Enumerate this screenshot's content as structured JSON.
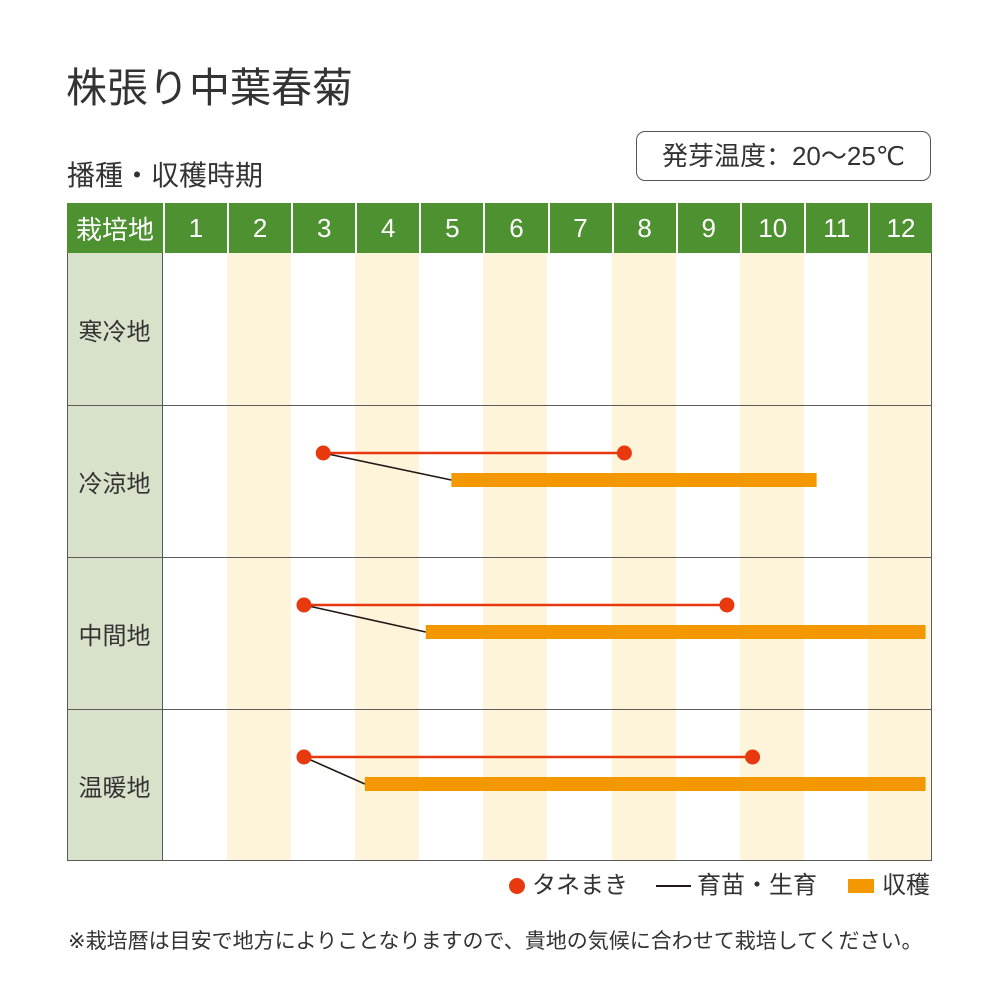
{
  "title": "株張り中葉春菊",
  "germination_temp": "発芽温度：20〜25℃",
  "note": "※栽培暦は目安で地方によりことなりますので、貴地の気候に合わせて栽培してください。",
  "colors": {
    "header": "#4e9131",
    "label_bg": "#d8e1c9",
    "stripe": "#fdf4da",
    "sowing": "#e8380d",
    "growing": "#231815",
    "harvest": "#f39800",
    "text": "#333333"
  },
  "chart_data": {
    "type": "bar",
    "orientation": "horizontal",
    "title": "播種・収穫時期",
    "corner_label": "栽培地",
    "months": [
      "1",
      "2",
      "3",
      "4",
      "5",
      "6",
      "7",
      "8",
      "9",
      "10",
      "11",
      "12"
    ],
    "xlim": [
      1,
      13
    ],
    "legend_position": "bottom-right",
    "legend": {
      "sowing": "タネまき",
      "growing": "育苗・生育",
      "harvest": "収穫"
    },
    "rows": [
      {
        "region": "寒冷地",
        "sowing": null,
        "harvest": null
      },
      {
        "region": "冷涼地",
        "sowing": [
          3.5,
          8.2
        ],
        "harvest": [
          5.5,
          11.2
        ]
      },
      {
        "region": "中間地",
        "sowing": [
          3.2,
          9.8
        ],
        "harvest": [
          5.1,
          12.9
        ]
      },
      {
        "region": "温暖地",
        "sowing": [
          3.2,
          10.2
        ],
        "harvest": [
          4.15,
          12.9
        ]
      }
    ]
  }
}
